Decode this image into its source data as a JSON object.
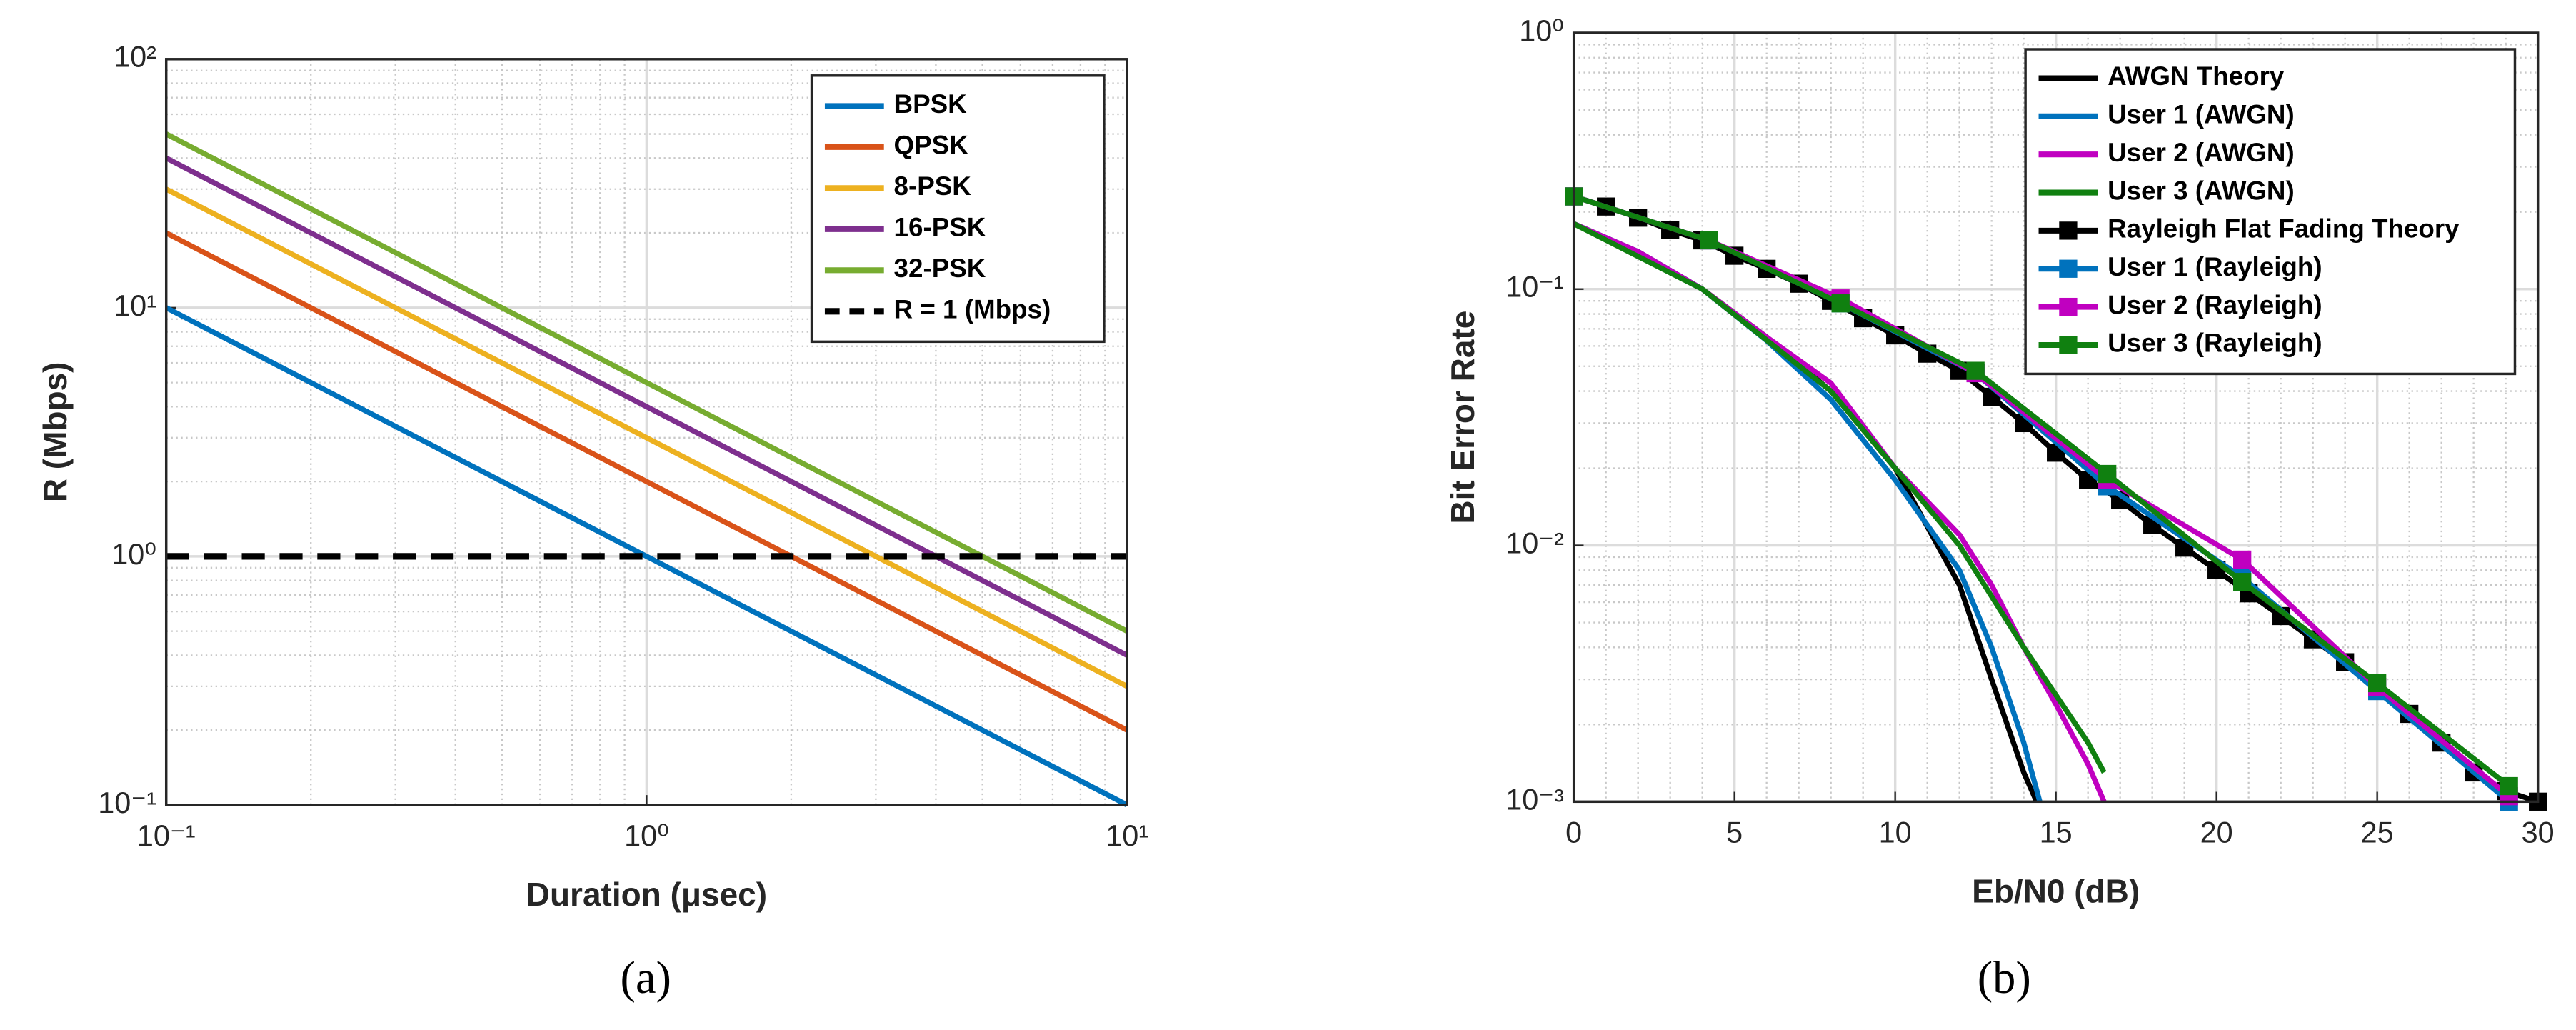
{
  "chart_data": [
    {
      "type": "line",
      "caption": "(a)",
      "xlabel": "Duration (μsec)",
      "ylabel": "R (Mbps)",
      "xscale": "log",
      "yscale": "log",
      "grid": true,
      "minor_grid": true,
      "legend": "upper right",
      "x": [
        0.1,
        1,
        10
      ],
      "xlim": [
        0.1,
        10
      ],
      "xticks": [
        {
          "value": 0.1,
          "label": "10⁻¹"
        },
        {
          "value": 1,
          "label": "10⁰"
        },
        {
          "value": 10,
          "label": "10¹"
        }
      ],
      "ylim": [
        0.1,
        100
      ],
      "yticks": [
        {
          "value": 0.1,
          "label": "10⁻¹"
        },
        {
          "value": 1,
          "label": "10⁰"
        },
        {
          "value": 10,
          "label": "10¹"
        },
        {
          "value": 100,
          "label": "10²"
        }
      ],
      "series": [
        {
          "name": "BPSK",
          "color": "#0072bd",
          "values": [
            10,
            1,
            0.1
          ]
        },
        {
          "name": "QPSK",
          "color": "#d95319",
          "values": [
            20,
            2,
            0.2
          ]
        },
        {
          "name": "8-PSK",
          "color": "#edb120",
          "values": [
            30,
            3,
            0.3
          ]
        },
        {
          "name": "16-PSK",
          "color": "#7e2f8e",
          "values": [
            40,
            4,
            0.4
          ]
        },
        {
          "name": "32-PSK",
          "color": "#77ac30",
          "values": [
            50,
            5,
            0.5
          ]
        },
        {
          "name": "R = 1 (Mbps)",
          "color": "#000000",
          "linestyle": "dashed",
          "values": [
            1,
            1,
            1
          ]
        }
      ]
    },
    {
      "type": "line",
      "caption": "(b)",
      "xlabel": "Eb/N0 (dB)",
      "ylabel": "Bit Error Rate",
      "xscale": "linear",
      "yscale": "log",
      "grid": true,
      "minor_grid": true,
      "legend": "upper right",
      "xlim": [
        0,
        30
      ],
      "xticks": [
        0,
        5,
        10,
        15,
        20,
        25,
        30
      ],
      "ylim": [
        0.001,
        1
      ],
      "yticks": [
        {
          "value": 0.001,
          "label": "10⁻³"
        },
        {
          "value": 0.01,
          "label": "10⁻²"
        },
        {
          "value": 0.1,
          "label": "10⁻¹"
        },
        {
          "value": 1,
          "label": "10⁰"
        }
      ],
      "series": [
        {
          "name": "AWGN Theory",
          "color": "#000000",
          "x": [
            0,
            2,
            4,
            6,
            8,
            10,
            12,
            13,
            14,
            14.4
          ],
          "values": [
            0.18,
            0.14,
            0.1,
            0.065,
            0.04,
            0.02,
            0.007,
            0.003,
            0.0013,
            0.001
          ]
        },
        {
          "name": "User 1 (AWGN)",
          "color": "#0072bd",
          "x": [
            0,
            2,
            4,
            6,
            8,
            10,
            12,
            13,
            14,
            14.5
          ],
          "values": [
            0.18,
            0.14,
            0.1,
            0.063,
            0.037,
            0.018,
            0.008,
            0.004,
            0.0017,
            0.001
          ]
        },
        {
          "name": "User 2 (AWGN)",
          "color": "#c000c0",
          "x": [
            0,
            2,
            4,
            6,
            8,
            10,
            12,
            13,
            14,
            15,
            16,
            16.5
          ],
          "values": [
            0.18,
            0.14,
            0.1,
            0.065,
            0.043,
            0.02,
            0.011,
            0.007,
            0.004,
            0.0024,
            0.0014,
            0.001
          ]
        },
        {
          "name": "User 3 (AWGN)",
          "color": "#108010",
          "x": [
            0,
            4,
            8,
            10,
            12,
            14,
            16,
            16.5
          ],
          "values": [
            0.18,
            0.1,
            0.04,
            0.02,
            0.01,
            0.004,
            0.0017,
            0.0013
          ]
        },
        {
          "name": "Rayleigh Flat Fading Theory",
          "color": "#000000",
          "marker": "square",
          "x": [
            0,
            1,
            2,
            3,
            4,
            5,
            6,
            7,
            8,
            9,
            10,
            11,
            12,
            13,
            14,
            15,
            16,
            17,
            18,
            19,
            20,
            21,
            22,
            23,
            24,
            25,
            26,
            27,
            28,
            29,
            30
          ],
          "values": [
            0.23,
            0.21,
            0.19,
            0.17,
            0.155,
            0.135,
            0.12,
            0.105,
            0.09,
            0.077,
            0.066,
            0.056,
            0.048,
            0.038,
            0.03,
            0.023,
            0.018,
            0.015,
            0.012,
            0.0098,
            0.008,
            0.0065,
            0.0053,
            0.0043,
            0.0035,
            0.0028,
            0.0022,
            0.0017,
            0.0013,
            0.0011,
            0.001
          ]
        },
        {
          "name": "User 1 (Rayleigh)",
          "color": "#0072bd",
          "marker": "square",
          "x": [
            0,
            4.2,
            8.3,
            12.5,
            16.6,
            20.8,
            25,
            29.1
          ],
          "values": [
            0.23,
            0.155,
            0.088,
            0.047,
            0.017,
            0.0075,
            0.0027,
            0.001
          ]
        },
        {
          "name": "User 2 (Rayleigh)",
          "color": "#c000c0",
          "marker": "square",
          "x": [
            0,
            4.2,
            8.3,
            12.5,
            16.6,
            20.8,
            25,
            29.1
          ],
          "values": [
            0.23,
            0.155,
            0.092,
            0.047,
            0.018,
            0.0088,
            0.0028,
            0.00105
          ]
        },
        {
          "name": "User 3 (Rayleigh)",
          "color": "#108010",
          "marker": "square",
          "x": [
            0,
            4.2,
            8.3,
            12.5,
            16.6,
            20.8,
            25,
            29.1
          ],
          "values": [
            0.23,
            0.155,
            0.088,
            0.048,
            0.019,
            0.0072,
            0.0029,
            0.00115
          ]
        }
      ]
    }
  ]
}
